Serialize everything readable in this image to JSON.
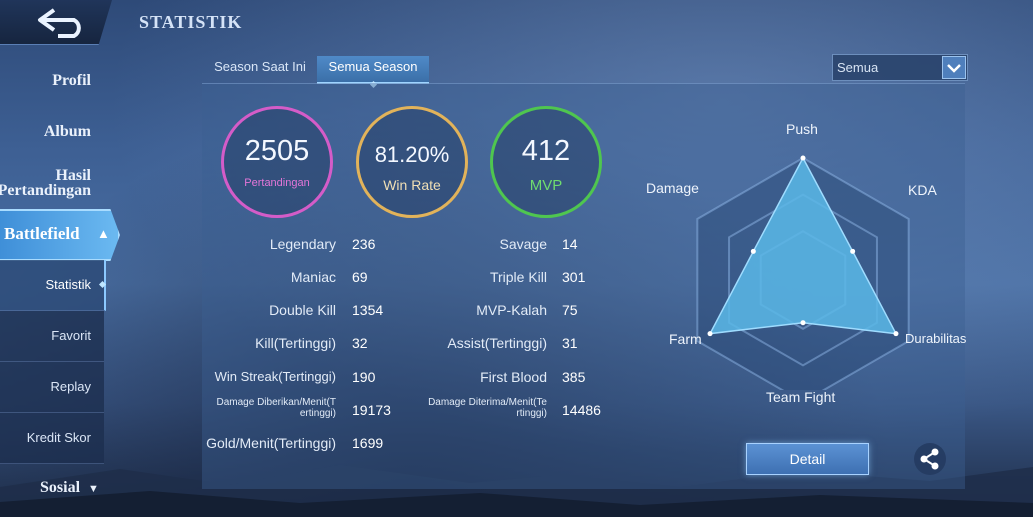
{
  "header": {
    "title": "STATISTIK",
    "back_icon": "back-arrow-icon"
  },
  "sidebar": {
    "items": [
      {
        "label": "Profil"
      },
      {
        "label": "Album"
      },
      {
        "label_line1": "Hasil",
        "label_line2": "Pertandingan"
      }
    ],
    "active": {
      "label": "Battlefield",
      "icon": "chevron-up-icon"
    },
    "sub_items": [
      {
        "label": "Statistik",
        "active": true
      },
      {
        "label": "Favorit"
      },
      {
        "label": "Replay"
      },
      {
        "label": "Kredit Skor"
      }
    ],
    "bottom": {
      "label": "Sosial",
      "icon": "chevron-down-icon"
    }
  },
  "tabs": [
    {
      "label": "Season Saat Ini",
      "active": false
    },
    {
      "label": "Semua Season",
      "active": true
    }
  ],
  "filter": {
    "selected": "Semua",
    "icon": "dropdown-arrow-icon"
  },
  "summary": [
    {
      "value": "2505",
      "label": "Pertandingan",
      "color": "#d45cc8"
    },
    {
      "value": "81.20%",
      "label": "Win Rate",
      "color": "#e2b35a"
    },
    {
      "value": "412",
      "label": "MVP",
      "color": "#4fc64f"
    }
  ],
  "stats_left": [
    {
      "label": "Legendary",
      "value": "236"
    },
    {
      "label": "Maniac",
      "value": "69"
    },
    {
      "label": "Double Kill",
      "value": "1354"
    },
    {
      "label": "Kill(Tertinggi)",
      "value": "32"
    },
    {
      "label": "Win Streak(Tertinggi)",
      "value": "190"
    },
    {
      "label_line1": "Damage Diberikan/Menit(T",
      "label_line2": "ertinggi)",
      "value": "19173"
    },
    {
      "label": "Gold/Menit(Tertinggi)",
      "value": "1699"
    }
  ],
  "stats_right": [
    {
      "label": "Savage",
      "value": "14"
    },
    {
      "label": "Triple Kill",
      "value": "301"
    },
    {
      "label": "MVP-Kalah",
      "value": "75"
    },
    {
      "label": "Assist(Tertinggi)",
      "value": "31"
    },
    {
      "label": "First Blood",
      "value": "385"
    },
    {
      "label_line1": "Damage Diterima/Menit(Te",
      "label_line2": "rtinggi)",
      "value": "14486"
    }
  ],
  "radar": {
    "axes": [
      "Push",
      "KDA",
      "Durabilitas",
      "Team Fight",
      "Farm",
      "Damage"
    ],
    "values": [
      1.0,
      0.47,
      0.88,
      0.35,
      0.88,
      0.47
    ],
    "fill": "#5bb8e8"
  },
  "actions": {
    "detail_label": "Detail",
    "share_icon": "share-icon"
  }
}
